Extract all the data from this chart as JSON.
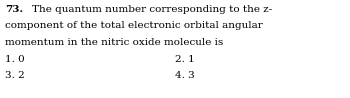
{
  "question_number": "73.",
  "lines": [
    "The quantum number corresponding to the z-",
    "component of the total electronic orbital angular",
    "momentum in the nitric oxide molecule is"
  ],
  "options": [
    {
      "num": "1.",
      "val": "0"
    },
    {
      "num": "2.",
      "val": "1"
    },
    {
      "num": "3.",
      "val": "2"
    },
    {
      "num": "4.",
      "val": "3"
    }
  ],
  "bg_color": "#ffffff",
  "text_color": "#000000",
  "font_size": 7.5,
  "fig_width": 3.5,
  "fig_height": 0.98,
  "dpi": 100
}
